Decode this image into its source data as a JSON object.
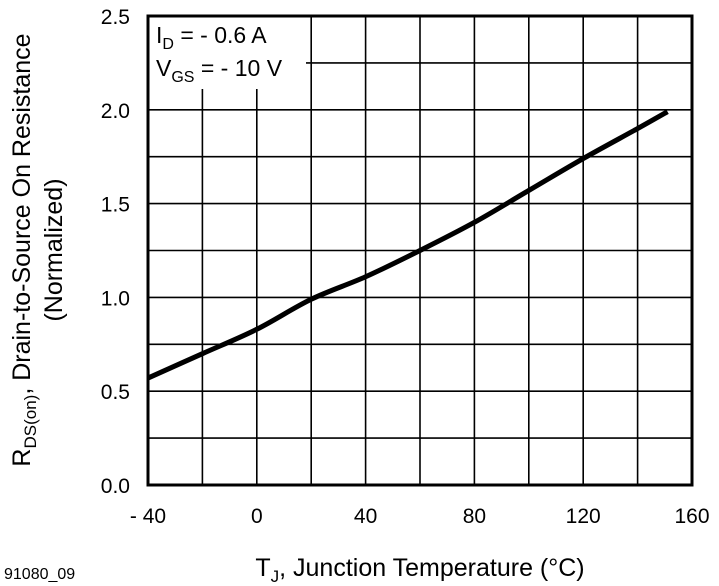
{
  "chart_data": {
    "type": "line",
    "figure_id": "91080_09",
    "xlabel": {
      "main": "T",
      "sub": "J",
      "rest": ", Junction Temperature (°C)"
    },
    "ylabel": {
      "main": "R",
      "sub": "DS(on)",
      "rest": ", Drain-to-Source On Resistance",
      "line2": "(Normalized)"
    },
    "xlim": [
      -40,
      160
    ],
    "ylim": [
      0,
      2.5
    ],
    "xticks": [
      -40,
      0,
      40,
      80,
      120,
      160
    ],
    "xtick_labels": [
      "- 40",
      "0",
      "40",
      "80",
      "120",
      "160"
    ],
    "yticks": [
      0,
      0.5,
      1.0,
      1.5,
      2.0,
      2.5
    ],
    "ytick_labels": [
      "0.0",
      "0.5",
      "1.0",
      "1.5",
      "2.0",
      "2.5"
    ],
    "grid": {
      "x_step": 20,
      "y_step": 0.25
    },
    "annotations": [
      {
        "main": "I",
        "sub": "D",
        "rest": " = - 0.6 A"
      },
      {
        "main": "V",
        "sub": "GS",
        "rest": " = - 10 V"
      }
    ],
    "series": [
      {
        "x": [
          -40,
          -20,
          0,
          20,
          40,
          60,
          80,
          100,
          120,
          140,
          151
        ],
        "y": [
          0.57,
          0.7,
          0.83,
          0.99,
          1.11,
          1.25,
          1.4,
          1.57,
          1.74,
          1.9,
          1.99
        ],
        "color": "#000000"
      }
    ]
  }
}
